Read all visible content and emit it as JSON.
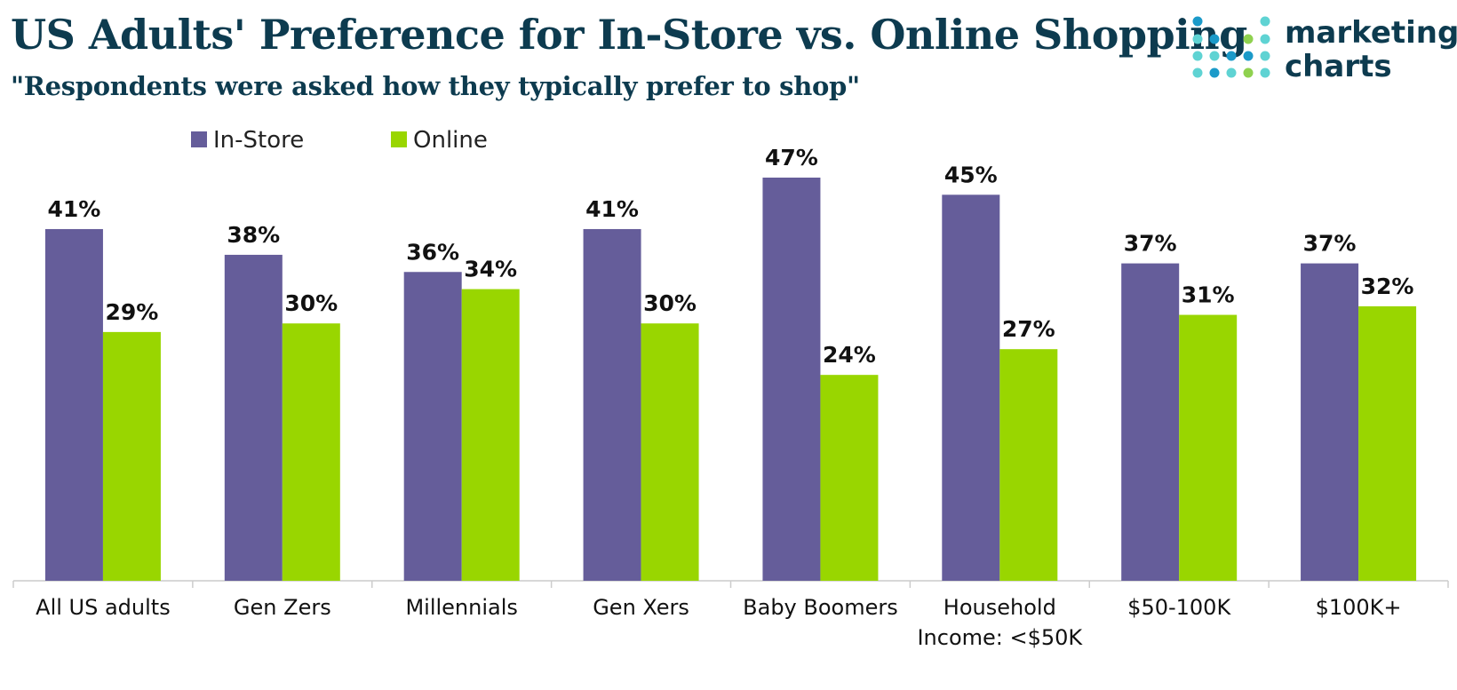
{
  "title": "US Adults' Preference for In-Store vs. Online Shopping",
  "subtitle": "\"Respondents were asked how they typically prefer to shop\"",
  "logo": {
    "line1": "marketing",
    "line2": "charts",
    "icon": "dot-grid-logo-icon"
  },
  "colors": {
    "in_store": "#655d9a",
    "online": "#99d600",
    "title": "#0d3b4f",
    "axis": "#cccccc"
  },
  "chart_data": {
    "type": "bar",
    "categories": [
      "All US adults",
      "Gen Zers",
      "Millennials",
      "Gen Xers",
      "Baby Boomers",
      "Household Income: <$50K",
      "$50-100K",
      "$100K+"
    ],
    "category_lines": [
      [
        "All US adults"
      ],
      [
        "Gen Zers"
      ],
      [
        "Millennials"
      ],
      [
        "Gen Xers"
      ],
      [
        "Baby Boomers"
      ],
      [
        "Household",
        "Income: <$50K"
      ],
      [
        "$50-100K"
      ],
      [
        "$100K+"
      ]
    ],
    "series": [
      {
        "name": "In-Store",
        "values": [
          41,
          38,
          36,
          41,
          47,
          45,
          37,
          37
        ],
        "labels": [
          "41%",
          "38%",
          "36%",
          "41%",
          "47%",
          "45%",
          "37%",
          "37%"
        ]
      },
      {
        "name": "Online",
        "values": [
          29,
          30,
          34,
          30,
          24,
          27,
          31,
          32
        ],
        "labels": [
          "29%",
          "30%",
          "34%",
          "30%",
          "24%",
          "27%",
          "31%",
          "32%"
        ]
      }
    ],
    "unit": "%",
    "ylim": [
      0,
      47
    ],
    "legend": "top-left",
    "grid": false
  }
}
